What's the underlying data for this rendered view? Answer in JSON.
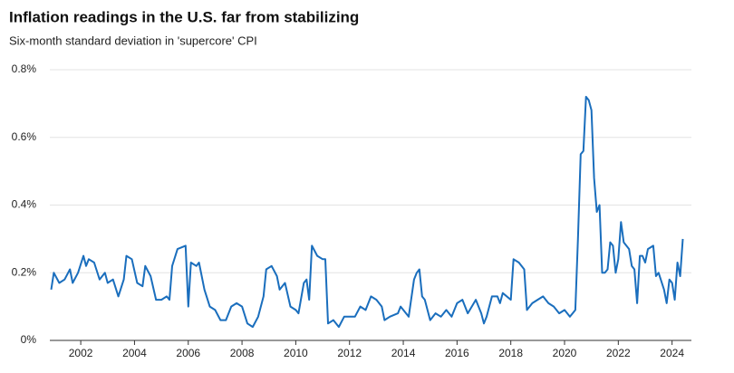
{
  "chart_data": {
    "type": "line",
    "title": "Inflation readings in the U.S. far from stabilizing",
    "subtitle": "Six-month standard deviation in 'supercore' CPI",
    "color": "#1a6ebd",
    "x": [
      2000.9,
      2001.0,
      2001.2,
      2001.4,
      2001.6,
      2001.7,
      2001.9,
      2002.1,
      2002.2,
      2002.3,
      2002.5,
      2002.7,
      2002.9,
      2003.0,
      2003.2,
      2003.4,
      2003.6,
      2003.7,
      2003.9,
      2004.1,
      2004.3,
      2004.4,
      2004.6,
      2004.8,
      2005.0,
      2005.2,
      2005.3,
      2005.4,
      2005.6,
      2005.9,
      2006.0,
      2006.1,
      2006.3,
      2006.4,
      2006.6,
      2006.8,
      2007.0,
      2007.2,
      2007.4,
      2007.6,
      2007.8,
      2008.0,
      2008.2,
      2008.4,
      2008.6,
      2008.8,
      2008.9,
      2009.1,
      2009.3,
      2009.4,
      2009.6,
      2009.8,
      2010.0,
      2010.1,
      2010.3,
      2010.4,
      2010.5,
      2010.6,
      2010.8,
      2011.0,
      2011.1,
      2011.2,
      2011.4,
      2011.6,
      2011.8,
      2012.0,
      2012.2,
      2012.4,
      2012.6,
      2012.8,
      2013.0,
      2013.2,
      2013.3,
      2013.5,
      2013.8,
      2013.9,
      2014.2,
      2014.4,
      2014.5,
      2014.6,
      2014.7,
      2014.8,
      2015.0,
      2015.2,
      2015.4,
      2015.6,
      2015.8,
      2016.0,
      2016.2,
      2016.4,
      2016.7,
      2016.9,
      2017.0,
      2017.1,
      2017.3,
      2017.5,
      2017.6,
      2017.7,
      2018.0,
      2018.1,
      2018.3,
      2018.5,
      2018.6,
      2018.8,
      2019.0,
      2019.2,
      2019.4,
      2019.6,
      2019.8,
      2020.0,
      2020.2,
      2020.3,
      2020.4,
      2020.5,
      2020.6,
      2020.7,
      2020.8,
      2020.9,
      2021.0,
      2021.1,
      2021.2,
      2021.3,
      2021.4,
      2021.5,
      2021.6,
      2021.7,
      2021.8,
      2021.9,
      2022.0,
      2022.1,
      2022.2,
      2022.4,
      2022.5,
      2022.6,
      2022.7,
      2022.8,
      2022.9,
      2023.0,
      2023.1,
      2023.3,
      2023.4,
      2023.5,
      2023.7,
      2023.8,
      2023.9,
      2024.0,
      2024.1,
      2024.2,
      2024.3,
      2024.4
    ],
    "values": [
      0.15,
      0.2,
      0.17,
      0.18,
      0.21,
      0.17,
      0.2,
      0.25,
      0.22,
      0.24,
      0.23,
      0.18,
      0.2,
      0.17,
      0.18,
      0.13,
      0.18,
      0.25,
      0.24,
      0.17,
      0.16,
      0.22,
      0.19,
      0.12,
      0.12,
      0.13,
      0.12,
      0.22,
      0.27,
      0.28,
      0.1,
      0.23,
      0.22,
      0.23,
      0.15,
      0.1,
      0.09,
      0.06,
      0.06,
      0.1,
      0.11,
      0.1,
      0.05,
      0.04,
      0.07,
      0.13,
      0.21,
      0.22,
      0.19,
      0.15,
      0.17,
      0.1,
      0.09,
      0.08,
      0.17,
      0.18,
      0.12,
      0.28,
      0.25,
      0.24,
      0.24,
      0.05,
      0.06,
      0.04,
      0.07,
      0.07,
      0.07,
      0.1,
      0.09,
      0.13,
      0.12,
      0.1,
      0.06,
      0.07,
      0.08,
      0.1,
      0.07,
      0.18,
      0.2,
      0.21,
      0.13,
      0.12,
      0.06,
      0.08,
      0.07,
      0.09,
      0.07,
      0.11,
      0.12,
      0.08,
      0.12,
      0.08,
      0.05,
      0.07,
      0.13,
      0.13,
      0.11,
      0.14,
      0.12,
      0.24,
      0.23,
      0.21,
      0.09,
      0.11,
      0.12,
      0.13,
      0.11,
      0.1,
      0.08,
      0.09,
      0.07,
      0.08,
      0.09,
      0.3,
      0.55,
      0.56,
      0.72,
      0.71,
      0.68,
      0.48,
      0.38,
      0.4,
      0.2,
      0.2,
      0.21,
      0.29,
      0.28,
      0.2,
      0.24,
      0.35,
      0.29,
      0.27,
      0.22,
      0.21,
      0.11,
      0.25,
      0.25,
      0.23,
      0.27,
      0.28,
      0.19,
      0.2,
      0.15,
      0.11,
      0.18,
      0.17,
      0.12,
      0.23,
      0.19,
      0.3
    ],
    "xlim": [
      2000.85,
      2024.45
    ],
    "xticks": [
      2002,
      2004,
      2006,
      2008,
      2010,
      2012,
      2014,
      2016,
      2018,
      2020,
      2022,
      2024
    ],
    "ylim": [
      0,
      0.8
    ],
    "yticks": [
      {
        "value": 0,
        "label": "0%"
      },
      {
        "value": 0.2,
        "label": "0.2%"
      },
      {
        "value": 0.4,
        "label": "0.4%"
      },
      {
        "value": 0.6,
        "label": "0.6%"
      },
      {
        "value": 0.8,
        "label": "0.8%"
      }
    ],
    "grid": true
  }
}
